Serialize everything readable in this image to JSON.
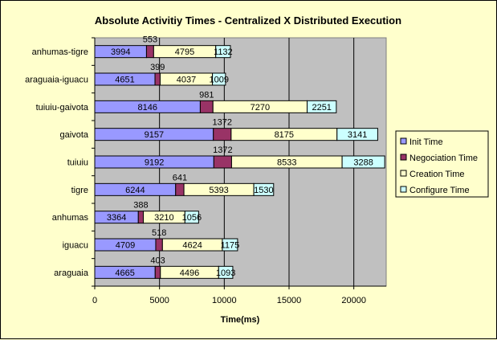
{
  "chart_data": {
    "type": "bar",
    "orientation": "horizontal",
    "stacked": true,
    "title": "Absolute Activitiy Times - Centralized X Distributed Execution",
    "xlabel": "Time(ms)",
    "ylabel": "",
    "xlim": [
      0,
      22500
    ],
    "xticks": [
      0,
      5000,
      10000,
      15000,
      20000
    ],
    "grid": "vertical major gridlines",
    "legend": "right",
    "categories": [
      "anhumas-tigre",
      "araguaia-iguacu",
      "tuiuiu-gaivota",
      "gaivota",
      "tuiuiu",
      "tigre",
      "anhumas",
      "iguacu",
      "araguaia"
    ],
    "series": [
      {
        "name": "Init Time",
        "color": "#9999ff",
        "values": [
          3994,
          4651,
          8146,
          9157,
          9192,
          6244,
          3364,
          4709,
          4665
        ]
      },
      {
        "name": "Negociation Time",
        "color": "#993366",
        "values": [
          553,
          399,
          981,
          1372,
          1372,
          641,
          388,
          518,
          403
        ]
      },
      {
        "name": "Creation Time",
        "color": "#ffffcc",
        "values": [
          4795,
          4037,
          7270,
          8175,
          8533,
          5393,
          3210,
          4624,
          4496
        ]
      },
      {
        "name": "Configure Time",
        "color": "#ccffff",
        "values": [
          1132,
          1009,
          2251,
          3141,
          3288,
          1530,
          1056,
          1175,
          1093
        ]
      }
    ],
    "colors": {
      "page_background": "#ffffcc",
      "plot_background": "#c0c0c0"
    }
  }
}
